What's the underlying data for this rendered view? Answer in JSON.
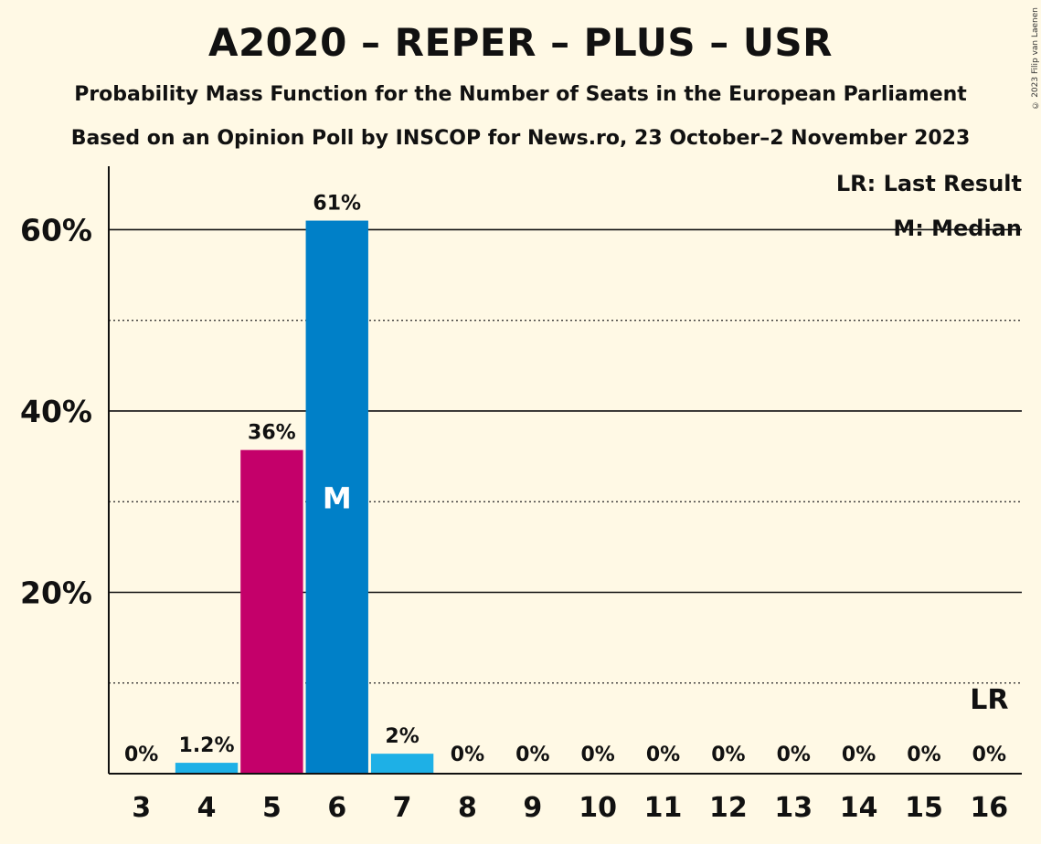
{
  "copyright": "© 2023 Filip van Laenen",
  "chart_data": {
    "type": "bar",
    "title": "A2020 – REPER – PLUS – USR",
    "subtitle": "Probability Mass Function for the Number of Seats in the European Parliament",
    "subtitle2": "Based on an Opinion Poll by INSCOP for News.ro, 23 October–2 November 2023",
    "categories": [
      "3",
      "4",
      "5",
      "6",
      "7",
      "8",
      "9",
      "10",
      "11",
      "12",
      "13",
      "14",
      "15",
      "16"
    ],
    "values": [
      0,
      1.2,
      35.7,
      61,
      2.2,
      0,
      0,
      0,
      0,
      0,
      0,
      0,
      0,
      0
    ],
    "value_labels": [
      "0%",
      "1.2%",
      "36%",
      "61%",
      "2%",
      "0%",
      "0%",
      "0%",
      "0%",
      "0%",
      "0%",
      "0%",
      "0%",
      "0%"
    ],
    "bar_colors": [
      "#1EB0E6",
      "#1EB0E6",
      "#C4006A",
      "#0080C8",
      "#1EB0E6",
      "#1EB0E6",
      "#1EB0E6",
      "#1EB0E6",
      "#1EB0E6",
      "#1EB0E6",
      "#1EB0E6",
      "#1EB0E6",
      "#1EB0E6",
      "#1EB0E6"
    ],
    "ylim": [
      0,
      67
    ],
    "yticks": [
      20,
      40,
      60
    ],
    "ytick_labels": [
      "20%",
      "40%",
      "60%"
    ],
    "minor_gridlines": [
      10,
      30,
      50
    ],
    "median_category": "6",
    "median_label": "M",
    "last_result_category": "16",
    "last_result_label": "LR",
    "legend": [
      "LR: Last Result",
      "M: Median"
    ],
    "legend_position": "top-right"
  }
}
